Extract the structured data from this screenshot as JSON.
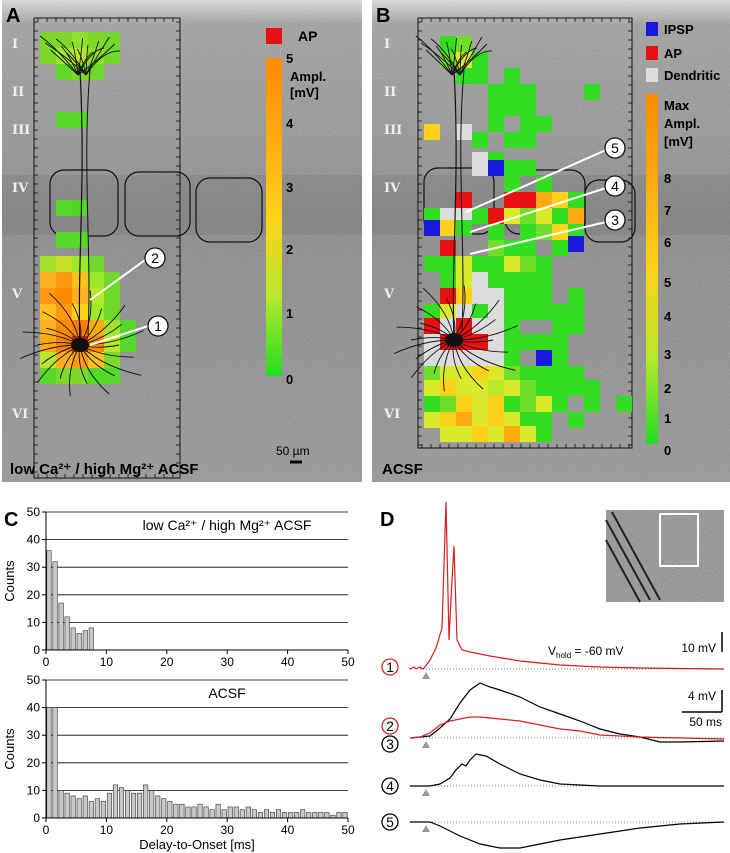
{
  "panels": {
    "A": {
      "label": "A",
      "layers": [
        "I",
        "II",
        "III",
        "IV",
        "V",
        "VI"
      ],
      "cells": [
        "1",
        "2"
      ],
      "legend_ap": "AP",
      "colorbar_title": "Ampl.",
      "colorbar_unit": "[mV]",
      "colorbar_ticks": [
        "5",
        "4",
        "3",
        "2",
        "1",
        "0"
      ],
      "scale_bar": "50 µm",
      "condition": "low Ca²⁺ / high Mg²⁺ ACSF"
    },
    "B": {
      "label": "B",
      "layers": [
        "I",
        "II",
        "III",
        "IV",
        "V",
        "VI"
      ],
      "cells": [
        "5",
        "4",
        "3"
      ],
      "legend": [
        {
          "label": "IPSP",
          "color": "#1a1adc"
        },
        {
          "label": "AP",
          "color": "#e81010"
        },
        {
          "label": "Dendritic",
          "color": "#dcdcdc"
        }
      ],
      "colorbar_title": "Max",
      "colorbar_title2": "Ampl.",
      "colorbar_unit": "[mV]",
      "colorbar_ticks": [
        "8",
        "7",
        "6",
        "5",
        "4",
        "3",
        "2",
        "1",
        "0"
      ],
      "condition": "ACSF"
    },
    "C": {
      "label": "C",
      "xlabel": "Delay-to-Onset [ms]",
      "ylabel": "Counts"
    },
    "D": {
      "label": "D",
      "vhold": "V",
      "vhold_sub": "hold",
      "vhold_value": " = -60 mV",
      "scale_10mv": "10 mV",
      "scale_4mv": "4 mV",
      "scale_50ms": "50 ms",
      "trace_labels": [
        "1",
        "2",
        "3",
        "4",
        "5"
      ]
    }
  },
  "chart_data": [
    {
      "type": "bar",
      "title": "low Ca²⁺ / high Mg²⁺ ACSF",
      "xlabel": "Delay-to-Onset [ms]",
      "ylabel": "Counts",
      "xlim": [
        0,
        50
      ],
      "ylim": [
        0,
        50
      ],
      "xticks": [
        "0",
        "10",
        "20",
        "30",
        "40",
        "50"
      ],
      "yticks": [
        "0",
        "10",
        "20",
        "30",
        "40",
        "50"
      ],
      "bin_width": 1,
      "bin_starts": [
        0,
        1,
        2,
        3,
        4,
        5,
        6,
        7
      ],
      "values": [
        36,
        32,
        17,
        12,
        8,
        6,
        7,
        8
      ]
    },
    {
      "type": "bar",
      "title": "ACSF",
      "xlabel": "Delay-to-Onset [ms]",
      "ylabel": "Counts",
      "xlim": [
        0,
        50
      ],
      "ylim": [
        0,
        50
      ],
      "xticks": [
        "0",
        "10",
        "20",
        "30",
        "40",
        "50"
      ],
      "yticks": [
        "0",
        "10",
        "20",
        "30",
        "40",
        "50"
      ],
      "bin_width": 1,
      "bin_starts": [
        0,
        1,
        2,
        3,
        4,
        5,
        6,
        7,
        8,
        9,
        10,
        11,
        12,
        13,
        14,
        15,
        16,
        17,
        18,
        19,
        20,
        21,
        22,
        23,
        24,
        25,
        26,
        27,
        28,
        29,
        30,
        31,
        32,
        33,
        34,
        35,
        36,
        37,
        38,
        39,
        40,
        41,
        42,
        43,
        44,
        45,
        46,
        47,
        48,
        49
      ],
      "values": [
        40,
        40,
        10,
        9,
        8,
        7,
        8,
        6,
        7,
        6,
        9,
        12,
        11,
        10,
        9,
        9,
        12,
        10,
        8,
        7,
        6,
        5,
        5,
        4,
        4,
        5,
        4,
        3,
        5,
        3,
        4,
        4,
        3,
        4,
        3,
        2,
        3,
        2,
        3,
        2,
        2,
        2,
        3,
        2,
        2,
        2,
        2,
        1,
        2,
        2
      ]
    }
  ]
}
